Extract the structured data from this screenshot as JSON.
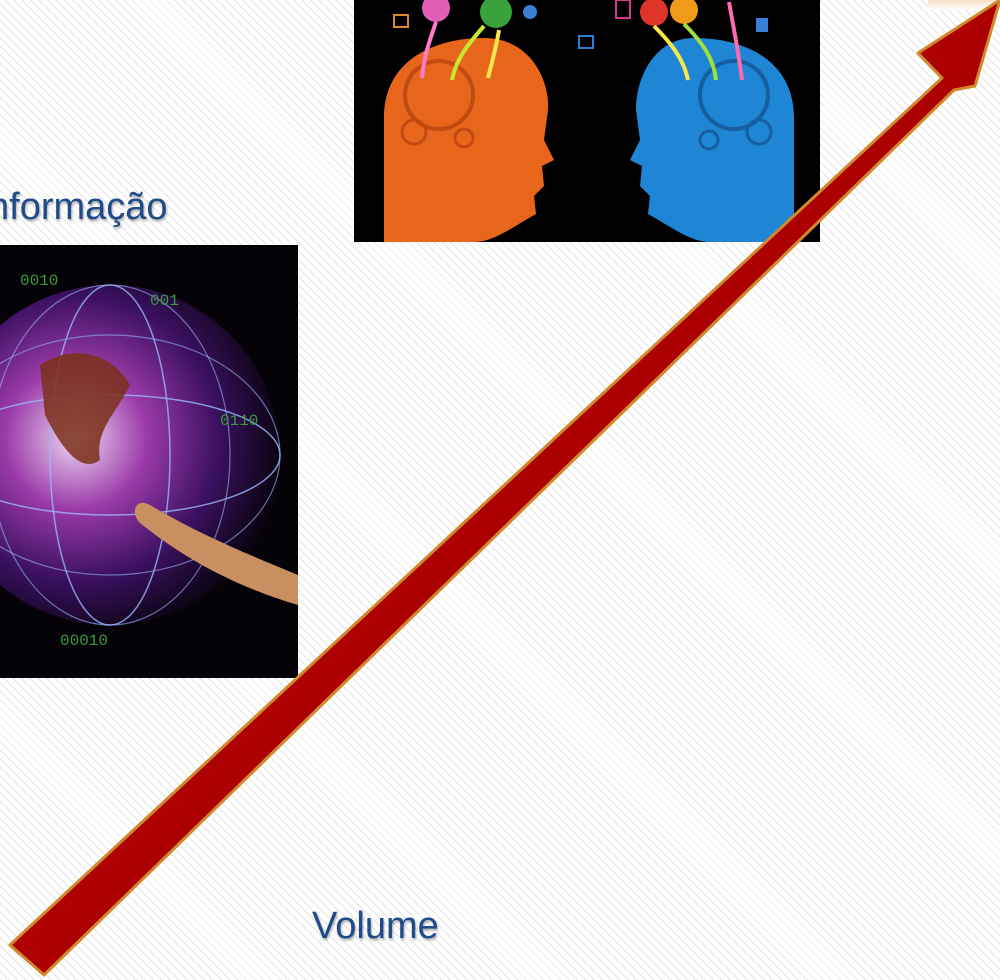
{
  "labels": {
    "information": "nformação",
    "volume": "Volume"
  },
  "images": {
    "heads": "two-heads-exchanging-ideas-image",
    "globe": "digital-globe-with-finger-image"
  },
  "colors": {
    "label_text": "#1f4a8c",
    "arrow_fill": "#b00000",
    "arrow_edge": "#d0882a",
    "head_left": "#e8661c",
    "head_right": "#1f86d6"
  }
}
